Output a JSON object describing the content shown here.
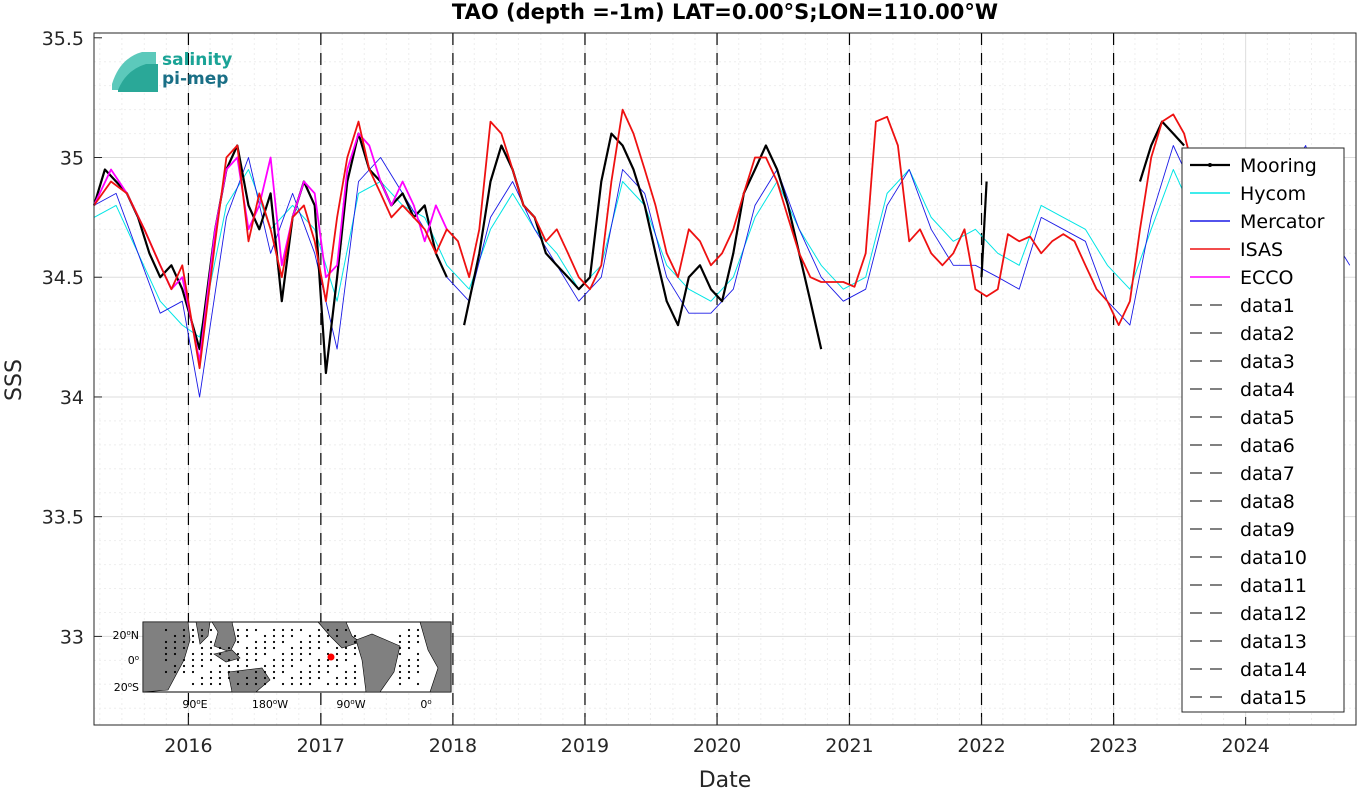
{
  "chart_data": {
    "type": "line",
    "title": "TAO (depth =-1m) LAT=0.00°S;LON=110.00°W",
    "xlabel": "Date",
    "ylabel": "SSS",
    "xlim": [
      "2015-04-15",
      "2024-11-01"
    ],
    "ylim": [
      32.63,
      35.52
    ],
    "x_ticks": [
      "2016",
      "2017",
      "2018",
      "2019",
      "2020",
      "2021",
      "2022",
      "2023",
      "2024"
    ],
    "y_ticks": [
      "33",
      "33.5",
      "34",
      "34.5",
      "35",
      "35.5"
    ],
    "y_tick_values": [
      33,
      33.5,
      34,
      34.5,
      35,
      35.5
    ],
    "grid": true,
    "legend_position": "right",
    "vertical_markers": [
      "2016-01-01",
      "2017-01-01",
      "2018-01-01",
      "2019-01-01",
      "2020-01-01",
      "2021-01-01",
      "2022-01-01",
      "2023-01-01"
    ],
    "series": [
      {
        "name": "Mooring",
        "color": "#000000",
        "segments": [
          {
            "x": [
              "2015-04-15",
              "2015-05-15",
              "2015-06-15",
              "2015-07-15",
              "2015-08-15",
              "2015-09-15",
              "2015-10-15",
              "2015-11-15",
              "2015-12-15",
              "2016-02-01",
              "2016-03-15",
              "2016-04-15",
              "2016-05-15",
              "2016-06-15",
              "2016-07-15",
              "2016-08-15",
              "2016-09-15",
              "2016-10-15",
              "2016-11-15",
              "2016-12-15",
              "2017-01-15",
              "2017-02-15",
              "2017-03-15",
              "2017-04-15",
              "2017-05-15",
              "2017-06-15",
              "2017-07-15",
              "2017-08-15",
              "2017-09-15",
              "2017-10-15",
              "2017-11-15",
              "2017-12-15"
            ],
            "y": [
              34.8,
              34.95,
              34.9,
              34.85,
              34.75,
              34.6,
              34.5,
              34.55,
              34.45,
              34.2,
              34.7,
              34.95,
              35.05,
              34.8,
              34.7,
              34.85,
              34.4,
              34.75,
              34.9,
              34.8,
              34.1,
              34.5,
              34.9,
              35.1,
              34.95,
              34.9,
              34.8,
              34.85,
              34.75,
              34.8,
              34.6,
              34.5
            ]
          },
          {
            "x": [
              "2018-02-01",
              "2018-03-15",
              "2018-04-15",
              "2018-05-15",
              "2018-06-15",
              "2018-07-15",
              "2018-08-15",
              "2018-09-15",
              "2018-10-15",
              "2018-11-15",
              "2018-12-15",
              "2019-01-15",
              "2019-02-15",
              "2019-03-15",
              "2019-04-15",
              "2019-05-15",
              "2019-06-15",
              "2019-07-15",
              "2019-08-15",
              "2019-09-15",
              "2019-10-15",
              "2019-11-15",
              "2019-12-15",
              "2020-01-15",
              "2020-02-15",
              "2020-03-15",
              "2020-04-15",
              "2020-05-15",
              "2020-06-15",
              "2020-07-15",
              "2020-08-15",
              "2020-09-15",
              "2020-10-15"
            ],
            "y": [
              34.3,
              34.6,
              34.9,
              35.05,
              34.95,
              34.8,
              34.75,
              34.6,
              34.55,
              34.5,
              34.45,
              34.5,
              34.9,
              35.1,
              35.05,
              34.95,
              34.8,
              34.6,
              34.4,
              34.3,
              34.5,
              34.55,
              34.45,
              34.4,
              34.6,
              34.85,
              34.95,
              35.05,
              34.95,
              34.8,
              34.6,
              34.4,
              34.2
            ]
          },
          {
            "x": [
              "2022-01-01",
              "2022-01-15"
            ],
            "y": [
              34.5,
              34.9
            ]
          },
          {
            "x": [
              "2023-03-15",
              "2023-04-15",
              "2023-05-15",
              "2023-06-15",
              "2023-07-15"
            ],
            "y": [
              34.9,
              35.05,
              35.15,
              35.1,
              35.05
            ]
          }
        ]
      },
      {
        "name": "Hycom",
        "color": "#00e5e5",
        "x": [
          "2015-04-15",
          "2015-06-15",
          "2015-08-15",
          "2015-10-15",
          "2015-12-15",
          "2016-02-01",
          "2016-04-15",
          "2016-06-15",
          "2016-08-15",
          "2016-10-15",
          "2016-12-15",
          "2017-02-15",
          "2017-04-15",
          "2017-06-15",
          "2017-08-15",
          "2017-10-15",
          "2017-12-15",
          "2018-02-15",
          "2018-04-15",
          "2018-06-15",
          "2018-08-15",
          "2018-10-15",
          "2018-12-15",
          "2019-02-15",
          "2019-04-15",
          "2019-06-15",
          "2019-08-15",
          "2019-10-15",
          "2019-12-15",
          "2020-02-15",
          "2020-04-15",
          "2020-06-15",
          "2020-08-15",
          "2020-10-15",
          "2020-12-15",
          "2021-02-15",
          "2021-04-15",
          "2021-06-15",
          "2021-08-15",
          "2021-10-15",
          "2021-12-15",
          "2022-02-15",
          "2022-04-15",
          "2022-06-15",
          "2022-08-15",
          "2022-10-15",
          "2022-12-15",
          "2023-02-15",
          "2023-04-15",
          "2023-06-15",
          "2023-07-15"
        ],
        "y": [
          34.75,
          34.8,
          34.6,
          34.4,
          34.3,
          34.25,
          34.8,
          34.95,
          34.7,
          34.8,
          34.7,
          34.4,
          34.85,
          34.9,
          34.8,
          34.75,
          34.55,
          34.45,
          34.7,
          34.85,
          34.7,
          34.6,
          34.45,
          34.55,
          34.9,
          34.8,
          34.55,
          34.45,
          34.4,
          34.5,
          34.75,
          34.9,
          34.7,
          34.55,
          34.45,
          34.5,
          34.85,
          34.95,
          34.75,
          34.65,
          34.7,
          34.6,
          34.55,
          34.8,
          34.75,
          34.7,
          34.55,
          34.45,
          34.7,
          34.95,
          34.85
        ]
      },
      {
        "name": "Mercator",
        "color": "#1a1ae6",
        "x": [
          "2015-04-15",
          "2015-06-15",
          "2015-08-15",
          "2015-10-15",
          "2015-12-15",
          "2016-02-01",
          "2016-04-15",
          "2016-06-15",
          "2016-08-15",
          "2016-10-15",
          "2016-12-15",
          "2017-02-15",
          "2017-04-15",
          "2017-06-15",
          "2017-08-15",
          "2017-10-15",
          "2017-12-15",
          "2018-02-15",
          "2018-04-15",
          "2018-06-15",
          "2018-08-15",
          "2018-10-15",
          "2018-12-15",
          "2019-02-15",
          "2019-04-15",
          "2019-06-15",
          "2019-08-15",
          "2019-10-15",
          "2019-12-15",
          "2020-02-15",
          "2020-04-15",
          "2020-06-15",
          "2020-08-15",
          "2020-10-15",
          "2020-12-15",
          "2021-02-15",
          "2021-04-15",
          "2021-06-15",
          "2021-08-15",
          "2021-10-15",
          "2021-12-15",
          "2022-02-15",
          "2022-04-15",
          "2022-06-15",
          "2022-08-15",
          "2022-10-15",
          "2022-12-15",
          "2023-02-15",
          "2023-04-15",
          "2023-06-15",
          "2023-08-15",
          "2023-10-15",
          "2023-12-15",
          "2024-02-15",
          "2024-04-15",
          "2024-06-15",
          "2024-08-15",
          "2024-10-15"
        ],
        "y": [
          34.8,
          34.85,
          34.6,
          34.35,
          34.4,
          34.0,
          34.75,
          35.0,
          34.6,
          34.85,
          34.6,
          34.2,
          34.9,
          35.0,
          34.85,
          34.7,
          34.5,
          34.4,
          34.75,
          34.9,
          34.7,
          34.55,
          34.4,
          34.5,
          34.95,
          34.85,
          34.5,
          34.35,
          34.35,
          34.45,
          34.8,
          34.95,
          34.7,
          34.5,
          34.4,
          34.45,
          34.8,
          34.95,
          34.7,
          34.55,
          34.55,
          34.5,
          34.45,
          34.75,
          34.7,
          34.65,
          34.4,
          34.3,
          34.75,
          35.05,
          34.85,
          34.6,
          34.55,
          34.5,
          34.9,
          35.05,
          34.7,
          34.55
        ]
      },
      {
        "name": "ISAS",
        "color": "#ee1111",
        "x": [
          "2015-04-15",
          "2015-06-01",
          "2015-07-15",
          "2015-09-01",
          "2015-10-15",
          "2015-11-15",
          "2015-12-15",
          "2016-02-01",
          "2016-03-15",
          "2016-04-15",
          "2016-05-15",
          "2016-06-15",
          "2016-07-15",
          "2016-08-15",
          "2016-09-15",
          "2016-10-15",
          "2016-11-15",
          "2016-12-15",
          "2017-01-15",
          "2017-02-15",
          "2017-03-15",
          "2017-04-15",
          "2017-05-15",
          "2017-06-15",
          "2017-07-15",
          "2017-08-15",
          "2017-09-15",
          "2017-10-15",
          "2017-11-15",
          "2017-12-15",
          "2018-01-15",
          "2018-02-15",
          "2018-03-15",
          "2018-04-15",
          "2018-05-15",
          "2018-06-15",
          "2018-07-15",
          "2018-08-15",
          "2018-09-15",
          "2018-10-15",
          "2018-11-15",
          "2018-12-15",
          "2019-01-15",
          "2019-02-15",
          "2019-03-15",
          "2019-04-15",
          "2019-05-15",
          "2019-06-15",
          "2019-07-15",
          "2019-08-15",
          "2019-09-15",
          "2019-10-15",
          "2019-11-15",
          "2019-12-15",
          "2020-01-15",
          "2020-02-15",
          "2020-03-15",
          "2020-04-15",
          "2020-05-15",
          "2020-06-15",
          "2020-07-15",
          "2020-08-15",
          "2020-09-15",
          "2020-10-15",
          "2020-11-15",
          "2020-12-15",
          "2021-01-15",
          "2021-02-15",
          "2021-03-15",
          "2021-04-15",
          "2021-05-15",
          "2021-06-15",
          "2021-07-15",
          "2021-08-15",
          "2021-09-15",
          "2021-10-15",
          "2021-11-15",
          "2021-12-15",
          "2022-01-15",
          "2022-02-15",
          "2022-03-15",
          "2022-04-15",
          "2022-05-15",
          "2022-06-15",
          "2022-07-15",
          "2022-08-15",
          "2022-09-15",
          "2022-10-15",
          "2022-11-15",
          "2022-12-15",
          "2023-01-15",
          "2023-02-15",
          "2023-03-15",
          "2023-04-15",
          "2023-05-15",
          "2023-06-15",
          "2023-07-15",
          "2023-08-01"
        ],
        "y": [
          34.8,
          34.9,
          34.85,
          34.7,
          34.55,
          34.45,
          34.55,
          34.12,
          34.65,
          35.0,
          35.05,
          34.65,
          34.85,
          34.7,
          34.5,
          34.75,
          34.8,
          34.65,
          34.4,
          34.75,
          35.0,
          35.15,
          34.95,
          34.85,
          34.75,
          34.8,
          34.75,
          34.7,
          34.6,
          34.7,
          34.65,
          34.5,
          34.7,
          35.15,
          35.1,
          34.95,
          34.8,
          34.75,
          34.65,
          34.7,
          34.6,
          34.5,
          34.45,
          34.55,
          34.9,
          35.2,
          35.1,
          34.95,
          34.8,
          34.6,
          34.5,
          34.7,
          34.65,
          34.55,
          34.6,
          34.7,
          34.85,
          35.0,
          35.0,
          34.9,
          34.75,
          34.6,
          34.5,
          34.48,
          34.48,
          34.48,
          34.46,
          34.6,
          35.15,
          35.17,
          35.05,
          34.65,
          34.7,
          34.6,
          34.55,
          34.6,
          34.7,
          34.45,
          34.42,
          34.45,
          34.68,
          34.65,
          34.67,
          34.6,
          34.65,
          34.68,
          34.65,
          34.55,
          34.45,
          34.4,
          34.3,
          34.4,
          34.7,
          35.0,
          35.15,
          35.18,
          35.1,
          35.0
        ]
      },
      {
        "name": "ECCO",
        "color": "#ff00ff",
        "x": [
          "2015-04-15",
          "2015-06-01",
          "2015-07-15",
          "2015-09-01",
          "2015-10-15",
          "2015-11-15",
          "2015-12-15",
          "2016-02-01",
          "2016-03-15",
          "2016-04-15",
          "2016-05-15",
          "2016-06-15",
          "2016-07-15",
          "2016-08-15",
          "2016-09-15",
          "2016-10-15",
          "2016-11-15",
          "2016-12-15",
          "2017-01-15",
          "2017-02-15",
          "2017-03-15",
          "2017-04-15",
          "2017-05-15",
          "2017-06-15",
          "2017-07-15",
          "2017-08-15",
          "2017-09-15",
          "2017-10-15",
          "2017-11-15",
          "2017-12-15"
        ],
        "y": [
          34.8,
          34.95,
          34.85,
          34.7,
          34.55,
          34.45,
          34.5,
          34.15,
          34.7,
          34.95,
          35.0,
          34.7,
          34.8,
          35.0,
          34.55,
          34.75,
          34.9,
          34.85,
          34.5,
          34.55,
          34.95,
          35.1,
          35.05,
          34.9,
          34.8,
          34.9,
          34.8,
          34.65,
          34.8,
          34.7
        ]
      },
      {
        "name": "data1",
        "color": "#000000"
      },
      {
        "name": "data2",
        "color": "#000000"
      },
      {
        "name": "data3",
        "color": "#000000"
      },
      {
        "name": "data4",
        "color": "#000000"
      },
      {
        "name": "data5",
        "color": "#000000"
      },
      {
        "name": "data6",
        "color": "#000000"
      },
      {
        "name": "data7",
        "color": "#000000"
      },
      {
        "name": "data8",
        "color": "#000000"
      },
      {
        "name": "data9",
        "color": "#000000"
      },
      {
        "name": "data10",
        "color": "#000000"
      },
      {
        "name": "data11",
        "color": "#000000"
      },
      {
        "name": "data12",
        "color": "#000000"
      },
      {
        "name": "data13",
        "color": "#000000"
      },
      {
        "name": "data14",
        "color": "#000000"
      },
      {
        "name": "data15",
        "color": "#000000"
      }
    ]
  },
  "logo": {
    "line1": "salinity",
    "line2": "pi-mep",
    "color": "#1aa396"
  },
  "inset_map": {
    "lat_labels": [
      "20",
      "0",
      "20"
    ],
    "lat_hemispheres": [
      "N",
      "",
      "S"
    ],
    "lon_labels": [
      "90",
      "180",
      "90",
      "0"
    ],
    "lon_hemispheres": [
      "E",
      "W",
      "W",
      ""
    ],
    "marker_color": "#ff0000",
    "land_color": "#808080",
    "ocean_color": "#ffffff"
  }
}
